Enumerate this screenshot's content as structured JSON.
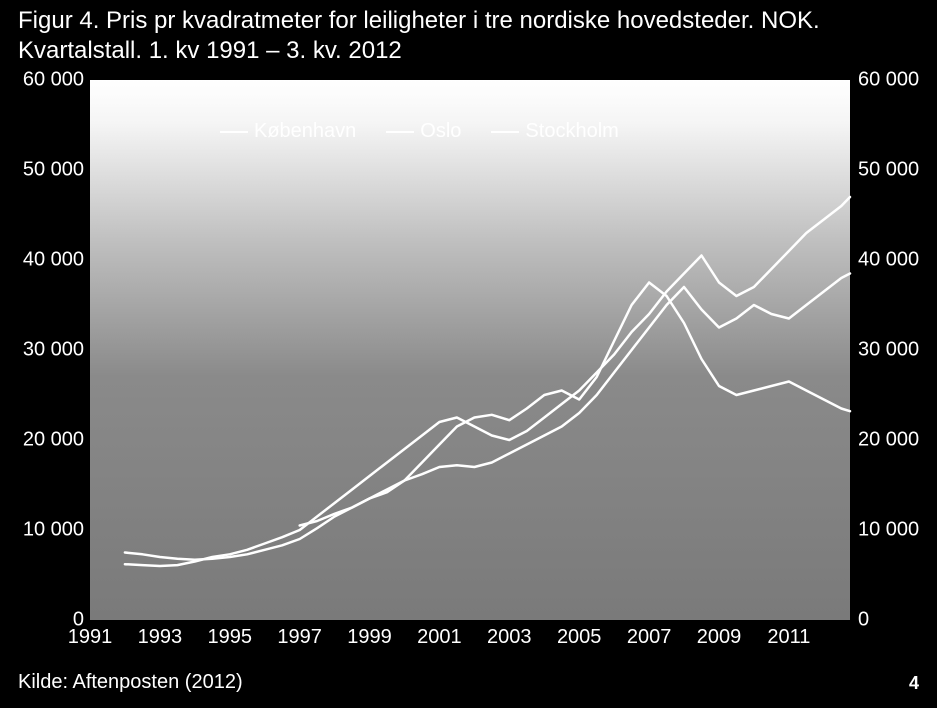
{
  "title_line1": "Figur 4. Pris pr kvadratmeter for leiligheter i tre nordiske hovedsteder. NOK.",
  "title_line2": "Kvartalstall. 1. kv 1991 – 3. kv. 2012",
  "source": "Kilde: Aftenposten (2012)",
  "page_number": "4",
  "chart": {
    "type": "line",
    "background_gradient": [
      "#ffffff",
      "#7a7a7a"
    ],
    "line_color": "#ffffff",
    "line_width": 2.5,
    "axis_text_color": "#ffffff",
    "axis_fontsize": 20,
    "title_fontsize": 24,
    "x": {
      "min": 1991,
      "max": 2012.75,
      "ticks": [
        1991,
        1993,
        1995,
        1997,
        1999,
        2001,
        2003,
        2005,
        2007,
        2009,
        2011
      ],
      "tick_labels": [
        "1991",
        "1993",
        "1995",
        "1997",
        "1999",
        "2001",
        "2003",
        "2005",
        "2007",
        "2009",
        "2011"
      ]
    },
    "y": {
      "min": 0,
      "max": 60000,
      "ticks": [
        0,
        10000,
        20000,
        30000,
        40000,
        50000,
        60000
      ],
      "tick_labels": [
        "0",
        "10 000",
        "20 000",
        "30 000",
        "40 000",
        "50 000",
        "60 000"
      ]
    },
    "legend": {
      "position": "top-left-inside",
      "items": [
        "København",
        "Oslo",
        "Stockholm"
      ]
    },
    "series": [
      {
        "name": "København",
        "color": "#ffffff",
        "data": [
          [
            1992.0,
            7500
          ],
          [
            1992.5,
            7300
          ],
          [
            1993.0,
            7000
          ],
          [
            1993.5,
            6800
          ],
          [
            1994.0,
            6700
          ],
          [
            1994.5,
            6800
          ],
          [
            1995.0,
            7000
          ],
          [
            1995.5,
            7300
          ],
          [
            1996.0,
            7800
          ],
          [
            1996.5,
            8300
          ],
          [
            1997.0,
            9000
          ],
          [
            1997.5,
            10200
          ],
          [
            1998.0,
            11500
          ],
          [
            1998.5,
            12500
          ],
          [
            1999.0,
            13500
          ],
          [
            1999.5,
            14200
          ],
          [
            2000.0,
            15500
          ],
          [
            2000.5,
            17500
          ],
          [
            2001.0,
            19500
          ],
          [
            2001.5,
            21500
          ],
          [
            2002.0,
            22500
          ],
          [
            2002.5,
            22800
          ],
          [
            2003.0,
            22200
          ],
          [
            2003.5,
            23500
          ],
          [
            2004.0,
            25000
          ],
          [
            2004.5,
            25500
          ],
          [
            2005.0,
            24500
          ],
          [
            2005.5,
            27000
          ],
          [
            2006.0,
            31000
          ],
          [
            2006.5,
            35000
          ],
          [
            2007.0,
            37500
          ],
          [
            2007.5,
            36000
          ],
          [
            2008.0,
            33000
          ],
          [
            2008.5,
            29000
          ],
          [
            2009.0,
            26000
          ],
          [
            2009.5,
            25000
          ],
          [
            2010.0,
            25500
          ],
          [
            2010.5,
            26000
          ],
          [
            2011.0,
            26500
          ],
          [
            2011.5,
            25500
          ],
          [
            2012.0,
            24500
          ],
          [
            2012.5,
            23500
          ],
          [
            2012.75,
            23200
          ]
        ]
      },
      {
        "name": "Oslo",
        "color": "#ffffff",
        "data": [
          [
            1992.0,
            6200
          ],
          [
            1992.5,
            6100
          ],
          [
            1993.0,
            6000
          ],
          [
            1993.5,
            6100
          ],
          [
            1994.0,
            6500
          ],
          [
            1994.5,
            7000
          ],
          [
            1995.0,
            7300
          ],
          [
            1995.5,
            7800
          ],
          [
            1996.0,
            8500
          ],
          [
            1996.5,
            9200
          ],
          [
            1997.0,
            10000
          ],
          [
            1997.5,
            11500
          ],
          [
            1998.0,
            13000
          ],
          [
            1998.5,
            14500
          ],
          [
            1999.0,
            16000
          ],
          [
            1999.5,
            17500
          ],
          [
            2000.0,
            19000
          ],
          [
            2000.5,
            20500
          ],
          [
            2001.0,
            22000
          ],
          [
            2001.5,
            22500
          ],
          [
            2002.0,
            21500
          ],
          [
            2002.5,
            20500
          ],
          [
            2003.0,
            20000
          ],
          [
            2003.5,
            21000
          ],
          [
            2004.0,
            22500
          ],
          [
            2004.5,
            24000
          ],
          [
            2005.0,
            25500
          ],
          [
            2005.5,
            27500
          ],
          [
            2006.0,
            29500
          ],
          [
            2006.5,
            32000
          ],
          [
            2007.0,
            34000
          ],
          [
            2007.5,
            36500
          ],
          [
            2008.0,
            38500
          ],
          [
            2008.5,
            40500
          ],
          [
            2009.0,
            37500
          ],
          [
            2009.5,
            36000
          ],
          [
            2010.0,
            37000
          ],
          [
            2010.5,
            39000
          ],
          [
            2011.0,
            41000
          ],
          [
            2011.5,
            43000
          ],
          [
            2012.0,
            44500
          ],
          [
            2012.5,
            46000
          ],
          [
            2012.75,
            47000
          ]
        ]
      },
      {
        "name": "Stockholm",
        "color": "#ffffff",
        "data": [
          [
            1997.0,
            10500
          ],
          [
            1997.5,
            11000
          ],
          [
            1998.0,
            11800
          ],
          [
            1998.5,
            12500
          ],
          [
            1999.0,
            13500
          ],
          [
            1999.5,
            14500
          ],
          [
            2000.0,
            15500
          ],
          [
            2000.5,
            16200
          ],
          [
            2001.0,
            17000
          ],
          [
            2001.5,
            17200
          ],
          [
            2002.0,
            17000
          ],
          [
            2002.5,
            17500
          ],
          [
            2003.0,
            18500
          ],
          [
            2003.5,
            19500
          ],
          [
            2004.0,
            20500
          ],
          [
            2004.5,
            21500
          ],
          [
            2005.0,
            23000
          ],
          [
            2005.5,
            25000
          ],
          [
            2006.0,
            27500
          ],
          [
            2006.5,
            30000
          ],
          [
            2007.0,
            32500
          ],
          [
            2007.5,
            35000
          ],
          [
            2008.0,
            37000
          ],
          [
            2008.5,
            34500
          ],
          [
            2009.0,
            32500
          ],
          [
            2009.5,
            33500
          ],
          [
            2010.0,
            35000
          ],
          [
            2010.5,
            34000
          ],
          [
            2011.0,
            33500
          ],
          [
            2011.5,
            35000
          ],
          [
            2012.0,
            36500
          ],
          [
            2012.5,
            38000
          ],
          [
            2012.75,
            38500
          ]
        ]
      }
    ]
  }
}
